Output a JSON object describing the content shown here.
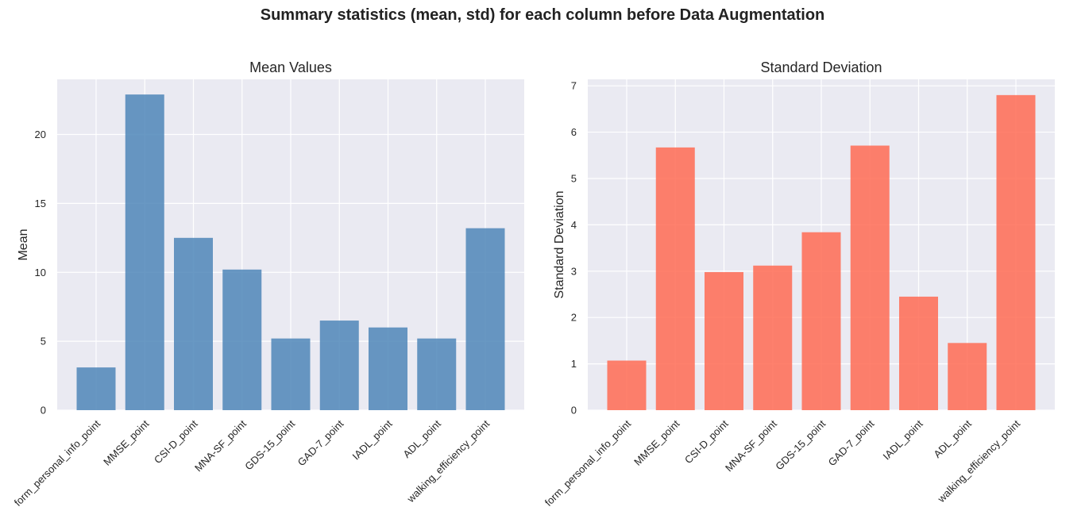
{
  "suptitle": "Summary statistics (mean, std) for each column before Data Augmentation",
  "colors": {
    "plot_bg": "#eaeaf2",
    "grid": "#ffffff",
    "mean_bar": "#4f86b8",
    "std_bar": "#ff6b53"
  },
  "chart_data": [
    {
      "type": "bar",
      "title": "Mean Values",
      "xlabel": "",
      "ylabel": "Mean",
      "categories": [
        "form_personal_info_point",
        "MMSE_point",
        "CSI-D_point",
        "MNA-SF_point",
        "GDS-15_point",
        "GAD-7_point",
        "IADL_point",
        "ADL_point",
        "walking_efficiency_point"
      ],
      "values": [
        3.1,
        22.9,
        12.5,
        10.2,
        5.2,
        6.5,
        6.0,
        5.2,
        13.2
      ],
      "ylim": [
        0,
        24.0
      ],
      "yticks": [
        0,
        5,
        10,
        15,
        20
      ],
      "color": "#4f86b8",
      "grid": true
    },
    {
      "type": "bar",
      "title": "Standard Deviation",
      "xlabel": "",
      "ylabel": "Standard Deviation",
      "categories": [
        "form_personal_info_point",
        "MMSE_point",
        "CSI-D_point",
        "MNA-SF_point",
        "GDS-15_point",
        "GAD-7_point",
        "IADL_point",
        "ADL_point",
        "walking_efficiency_point"
      ],
      "values": [
        1.07,
        5.67,
        2.98,
        3.12,
        3.84,
        5.71,
        2.45,
        1.45,
        6.8
      ],
      "ylim": [
        0,
        7.14
      ],
      "yticks": [
        0,
        1,
        2,
        3,
        4,
        5,
        6,
        7
      ],
      "color": "#ff6b53",
      "grid": true
    }
  ]
}
